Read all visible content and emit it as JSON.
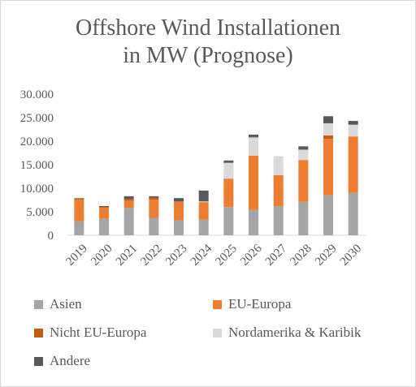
{
  "chart_data": {
    "type": "bar",
    "stacked": true,
    "title_line1": "Offshore Wind Installationen",
    "title_line2": "in MW (Prognose)",
    "categories": [
      "2019",
      "2020",
      "2021",
      "2022",
      "2023",
      "2024",
      "2025",
      "2026",
      "2027",
      "2028",
      "2029",
      "2030"
    ],
    "ylim": [
      0,
      30000
    ],
    "yticks": [
      0,
      5000,
      10000,
      15000,
      20000,
      25000,
      30000
    ],
    "ytick_labels": [
      "0",
      "5.000",
      "10.000",
      "15.000",
      "20.000",
      "25.000",
      "30.000"
    ],
    "grid": false,
    "legend_position": "bottom",
    "series": [
      {
        "name": "Asien",
        "color": "#a5a5a5",
        "values": [
          3000,
          3500,
          5800,
          3700,
          3200,
          3300,
          6000,
          5400,
          6200,
          7100,
          8500,
          9000
        ]
      },
      {
        "name": "EU-Europa",
        "color": "#ed7d31",
        "values": [
          4600,
          2300,
          1600,
          3900,
          3900,
          3600,
          5900,
          11500,
          6600,
          8900,
          12000,
          12000
        ]
      },
      {
        "name": "Nicht EU-Europa",
        "color": "#c55a11",
        "values": [
          200,
          200,
          300,
          400,
          100,
          100,
          100,
          0,
          0,
          0,
          700,
          0
        ]
      },
      {
        "name": "Nordamerika & Karibik",
        "color": "#dadada",
        "values": [
          0,
          0,
          0,
          0,
          0,
          200,
          3400,
          3900,
          4000,
          2200,
          2600,
          2500
        ]
      },
      {
        "name": "Andere",
        "color": "#595959",
        "values": [
          100,
          200,
          600,
          300,
          700,
          2300,
          500,
          600,
          0,
          700,
          1500,
          800
        ]
      }
    ]
  }
}
